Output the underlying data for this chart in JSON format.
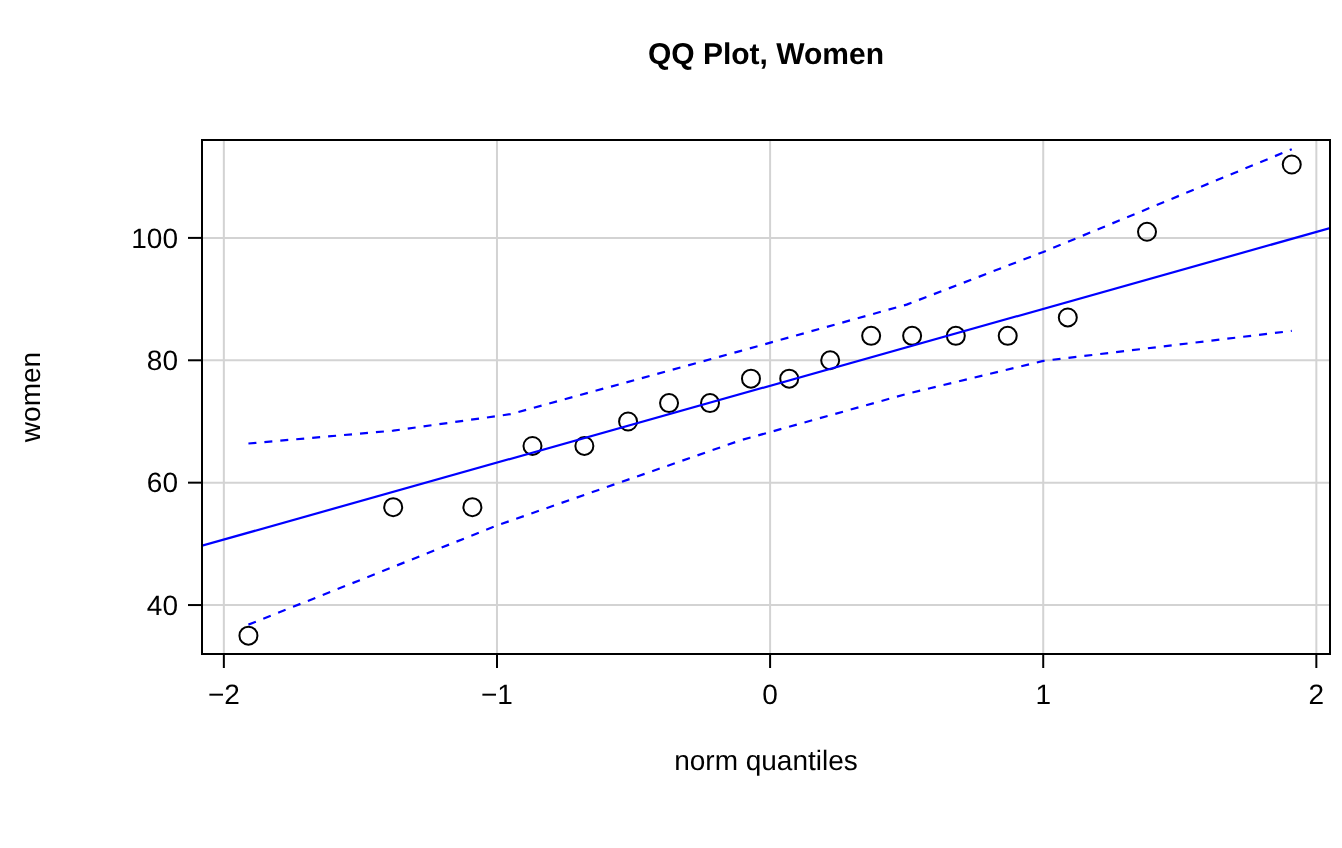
{
  "chart_data": {
    "type": "scatter",
    "title": "QQ Plot, Women",
    "xlabel": "norm quantiles",
    "ylabel": "women",
    "xlim": [
      -2.08,
      2.05
    ],
    "ylim": [
      32,
      116
    ],
    "xticks": [
      {
        "value": -2,
        "label": "−2"
      },
      {
        "value": -1,
        "label": "−1"
      },
      0,
      1,
      2
    ],
    "yticks": [
      40,
      60,
      80,
      100
    ],
    "grid": true,
    "series": [
      {
        "marker": "circle",
        "color": "#000000",
        "x": [
          -1.91,
          -1.38,
          -1.09,
          -0.87,
          -0.68,
          -0.52,
          -0.37,
          -0.22,
          -0.07,
          0.07,
          0.22,
          0.37,
          0.52,
          0.68,
          0.87,
          1.09,
          1.38,
          1.91
        ],
        "values": [
          35,
          56,
          56,
          66,
          66,
          70,
          73,
          73,
          77,
          77,
          80,
          84,
          84,
          84,
          84,
          87,
          101,
          112
        ]
      },
      {
        "type": "line",
        "line_style": "solid",
        "color": "#0000ff",
        "x": [
          -2.08,
          2.05
        ],
        "values": [
          49.7,
          101.6
        ]
      },
      {
        "type": "line",
        "line_style": "dashed",
        "color": "#0000ff",
        "x": [
          -1.91,
          -1.38,
          -0.95,
          -0.11,
          0.5,
          1,
          1.91
        ],
        "values": [
          66.4,
          68.5,
          71.2,
          81.5,
          89.1,
          97.7,
          114.5
        ]
      },
      {
        "type": "line",
        "line_style": "dashed",
        "color": "#0000ff",
        "x": [
          -1.91,
          -1,
          -0.11,
          0.5,
          1,
          1.91
        ],
        "values": [
          36.8,
          53,
          66.9,
          74.5,
          79.9,
          84.8
        ]
      }
    ]
  }
}
